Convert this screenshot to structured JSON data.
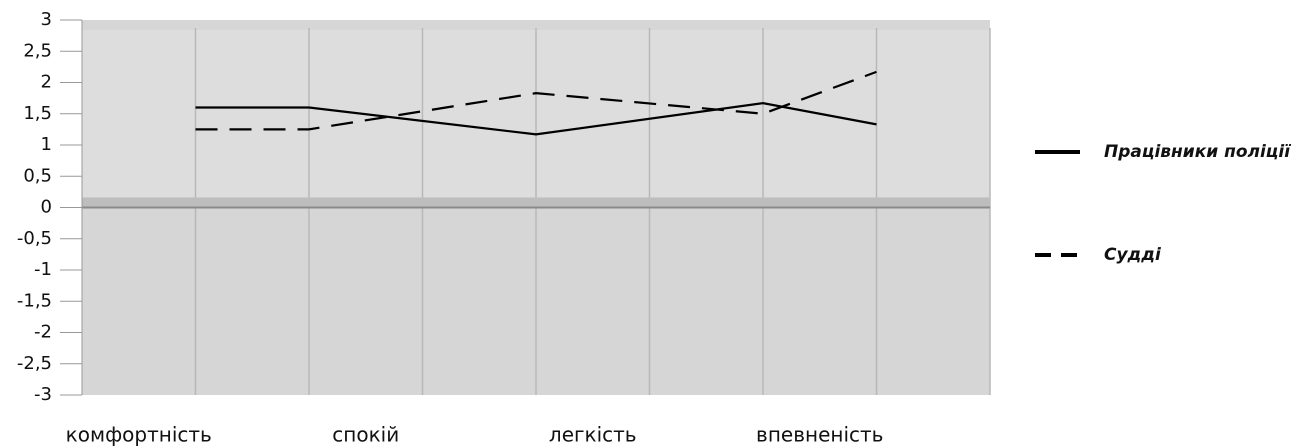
{
  "chart_data": {
    "type": "line",
    "categories": [
      "комфортність",
      null,
      "спокій",
      null,
      "легкість",
      null,
      "впевненість",
      null
    ],
    "x": [
      1,
      2,
      4,
      6,
      7
    ],
    "xlim": [
      0,
      8
    ],
    "series": [
      {
        "name": "Працівники поліції",
        "color": "#000000",
        "dash": false,
        "values": [
          1.6,
          1.6,
          1.17,
          1.67,
          1.33
        ]
      },
      {
        "name": "Судді",
        "color": "#000000",
        "dash": true,
        "values": [
          1.25,
          1.25,
          1.83,
          1.5,
          2.17
        ]
      }
    ],
    "ylim": [
      -3,
      3
    ],
    "yticks": [
      -3,
      {
        "value": -2.5,
        "label": "-2,5"
      },
      -2,
      {
        "value": -1.5,
        "label": "-1,5"
      },
      -1,
      {
        "value": -0.5,
        "label": "-0,5"
      },
      0,
      {
        "value": 0.5,
        "label": "0,5"
      },
      1,
      {
        "value": 1.5,
        "label": "1,5"
      },
      2,
      {
        "value": 2.5,
        "label": "2,5"
      },
      3
    ],
    "grid": false,
    "legend": "right"
  }
}
